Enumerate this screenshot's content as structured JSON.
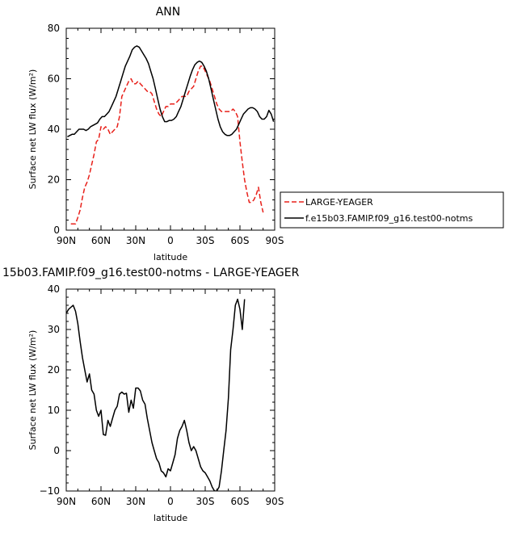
{
  "colors": {
    "black": "#000000",
    "red": "#e8201a"
  },
  "chart_data": [
    {
      "type": "line",
      "title": "ANN",
      "xlabel": "latitude",
      "ylabel": "Surface net LW flux (W/m²)",
      "xlim": [
        90,
        -90
      ],
      "ylim": [
        0,
        80
      ],
      "xticks": [
        90,
        60,
        30,
        0,
        -30,
        -60,
        -90
      ],
      "xtick_labels": [
        "90N",
        "60N",
        "30N",
        "0",
        "30S",
        "60S",
        "90S"
      ],
      "yticks": [
        0,
        20,
        40,
        60,
        80
      ],
      "ytick_labels": [
        "0",
        "20",
        "40",
        "60",
        "80"
      ],
      "grid": false,
      "legend": "right of plot",
      "series": [
        {
          "name": "LARGE-YEAGER",
          "color": "#e8201a",
          "dash": true,
          "x": [
            86,
            82,
            80,
            78,
            76,
            74,
            72,
            70,
            68,
            66,
            64,
            62,
            60,
            58,
            56,
            54,
            52,
            50,
            48,
            46,
            44,
            42,
            40,
            38,
            36,
            34,
            32,
            30,
            28,
            26,
            24,
            22,
            20,
            18,
            16,
            14,
            12,
            10,
            8,
            6,
            4,
            2,
            0,
            -2,
            -4,
            -6,
            -8,
            -10,
            -12,
            -14,
            -16,
            -18,
            -20,
            -22,
            -24,
            -26,
            -28,
            -30,
            -32,
            -34,
            -36,
            -38,
            -40,
            -42,
            -44,
            -46,
            -48,
            -50,
            -52,
            -54,
            -56,
            -58,
            -60,
            -62,
            -64,
            -66,
            -68,
            -70,
            -72,
            -74,
            -76,
            -78,
            -80
          ],
          "y": [
            2.5,
            2.5,
            5,
            8,
            13,
            17,
            19,
            22,
            26,
            30,
            35,
            36,
            41,
            40,
            41,
            40,
            38,
            39,
            40,
            41,
            45,
            53,
            55,
            57,
            59,
            60,
            58,
            58,
            59,
            58,
            57,
            56,
            55,
            55,
            54,
            51,
            48,
            46,
            45,
            47,
            49,
            49,
            50,
            50,
            50,
            51,
            52,
            53,
            53,
            53,
            55,
            56,
            57,
            60,
            63,
            65,
            65,
            63,
            61,
            59,
            56,
            53,
            50,
            48,
            47,
            47,
            47,
            47,
            47,
            48,
            47,
            45,
            35,
            27,
            20,
            15,
            11,
            11,
            12,
            14,
            17,
            11,
            7
          ]
        },
        {
          "name": "f.e15b03.FAMIP.f09_g16.test00-notms",
          "color": "#000000",
          "dash": false,
          "x": [
            89,
            87,
            85,
            83,
            81,
            79,
            77,
            75,
            73,
            71,
            69,
            67,
            65,
            63,
            61,
            59,
            57,
            55,
            53,
            51,
            49,
            47,
            45,
            43,
            41,
            39,
            37,
            35,
            33,
            31,
            29,
            27,
            25,
            23,
            21,
            19,
            17,
            15,
            13,
            11,
            9,
            7,
            5,
            3,
            1,
            -1,
            -3,
            -5,
            -7,
            -9,
            -11,
            -13,
            -15,
            -17,
            -19,
            -21,
            -23,
            -25,
            -27,
            -29,
            -31,
            -33,
            -35,
            -37,
            -39,
            -41,
            -43,
            -45,
            -47,
            -49,
            -51,
            -53,
            -55,
            -57,
            -59,
            -61,
            -63,
            -65,
            -67,
            -69,
            -71,
            -73,
            -75,
            -77,
            -79,
            -81,
            -83,
            -85,
            -87,
            -89
          ],
          "y": [
            37,
            37.5,
            38,
            38,
            39,
            40,
            40,
            40,
            39.5,
            40,
            41,
            41.5,
            42,
            42.5,
            44,
            45,
            45,
            46,
            47,
            49,
            51,
            53,
            56,
            59,
            62,
            65,
            67,
            69,
            71.5,
            72.5,
            73,
            72.5,
            71,
            69.5,
            68,
            66,
            63,
            60,
            56,
            52,
            48,
            45,
            43,
            43,
            43.5,
            43.5,
            44,
            45,
            47,
            49,
            52,
            55,
            58,
            61,
            63.5,
            65.5,
            66.5,
            67,
            66.5,
            65,
            63,
            60,
            56,
            52,
            48,
            44,
            41,
            39,
            38,
            37.5,
            37.5,
            38,
            39,
            40,
            42,
            44,
            46,
            47,
            48,
            48.5,
            48.5,
            48,
            47,
            45,
            44,
            44,
            45,
            47.5,
            46,
            43
          ]
        }
      ]
    },
    {
      "type": "line",
      "title": "15b03.FAMIP.f09_g16.test00-notms - LARGE-YEAGER",
      "xlabel": "latitude",
      "ylabel": "Surface net LW flux (W/m²)",
      "xlim": [
        90,
        -90
      ],
      "ylim": [
        -10,
        40
      ],
      "xticks": [
        90,
        60,
        30,
        0,
        -30,
        -60,
        -90
      ],
      "xtick_labels": [
        "90N",
        "60N",
        "30N",
        "0",
        "30S",
        "60S",
        "90S"
      ],
      "yticks": [
        -10,
        0,
        10,
        20,
        30,
        40
      ],
      "ytick_labels": [
        "−10",
        "0",
        "10",
        "20",
        "30",
        "40"
      ],
      "grid": false,
      "series": [
        {
          "color": "#000000",
          "dash": false,
          "x": [
            90,
            88,
            86,
            84,
            82,
            80,
            78,
            76,
            74,
            72,
            70,
            68,
            66,
            64,
            62,
            60,
            58,
            56,
            54,
            52,
            50,
            48,
            46,
            44,
            42,
            40,
            38,
            36,
            34,
            32,
            30,
            28,
            26,
            24,
            22,
            20,
            18,
            16,
            14,
            12,
            10,
            8,
            6,
            4,
            2,
            0,
            -2,
            -4,
            -6,
            -8,
            -10,
            -12,
            -14,
            -16,
            -18,
            -20,
            -22,
            -24,
            -26,
            -28,
            -30,
            -32,
            -34,
            -36,
            -38,
            -40,
            -42,
            -44,
            -46,
            -48,
            -50,
            -52,
            -54,
            -56,
            -58,
            -60,
            -62,
            -64,
            -66,
            -68,
            -70,
            -72,
            -74,
            -76,
            -78,
            -80
          ],
          "y": [
            34,
            35,
            35.5,
            36,
            34.5,
            31.5,
            27,
            23,
            20,
            17,
            19,
            15,
            14,
            10,
            8.5,
            10,
            4,
            3.8,
            7.5,
            6,
            8,
            10,
            11,
            14,
            14.5,
            14,
            14.2,
            9.5,
            12.5,
            10.5,
            15.5,
            15.5,
            14.8,
            12.5,
            11.5,
            8,
            5,
            2,
            0,
            -2,
            -3,
            -5,
            -5.5,
            -6.5,
            -4.5,
            -5,
            -3,
            -1,
            3,
            5,
            6,
            7.5,
            5,
            2,
            0,
            1,
            0,
            -2,
            -4,
            -5,
            -5.5,
            -6.5,
            -7.5,
            -9,
            -10,
            -10,
            -9,
            -5,
            0,
            5,
            13,
            25,
            30,
            36,
            37.5,
            35,
            30,
            37.5,
            null,
            null,
            null,
            null,
            null,
            null,
            null,
            null
          ]
        }
      ]
    }
  ]
}
